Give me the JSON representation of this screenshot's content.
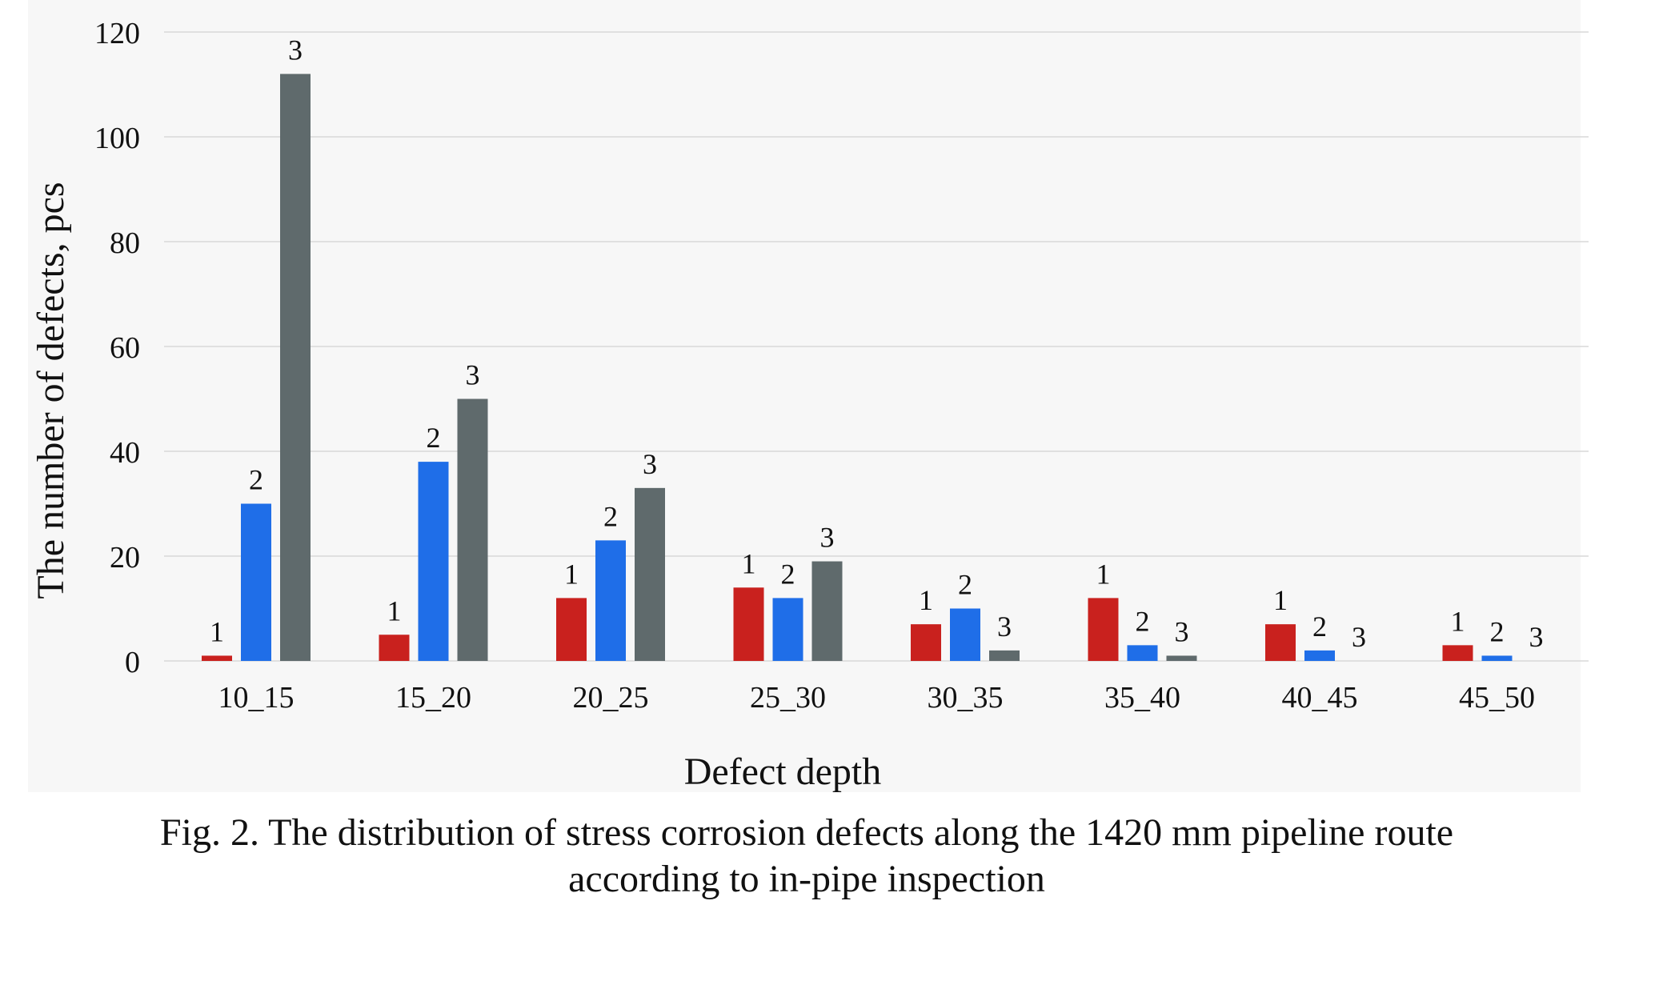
{
  "chart_data": {
    "type": "bar",
    "categories": [
      "10_15",
      "15_20",
      "20_25",
      "25_30",
      "30_35",
      "35_40",
      "40_45",
      "45_50"
    ],
    "series": [
      {
        "name": "1",
        "color": "#c9211e",
        "values": [
          1,
          5,
          12,
          14,
          7,
          12,
          7,
          3
        ]
      },
      {
        "name": "2",
        "color": "#1f6ee8",
        "values": [
          30,
          38,
          23,
          12,
          10,
          3,
          2,
          1
        ]
      },
      {
        "name": "3",
        "color": "#5f6a6c",
        "values": [
          112,
          50,
          33,
          19,
          2,
          1,
          0,
          0
        ]
      }
    ],
    "bar_labels": [
      "1",
      "2",
      "3"
    ],
    "xlabel": "Defect depth",
    "ylabel": "The number of defects, pcs",
    "ylim": [
      0,
      120
    ],
    "yticks": [
      0,
      20,
      40,
      60,
      80,
      100,
      120
    ],
    "grid": true,
    "legend": "none"
  },
  "caption": {
    "line1": "Fig. 2. The distribution of stress corrosion defects along the 1420 mm pipeline route",
    "line2": "according to in-pipe inspection"
  }
}
